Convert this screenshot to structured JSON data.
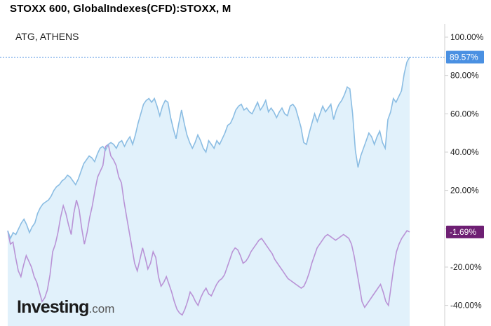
{
  "chart_title": "STOXX 600, GlobalIndexes(CFD):STOXX, M",
  "compare_label": "ATG, ATHENS",
  "logo": {
    "main": "Investing",
    "suffix": ".com"
  },
  "colors": {
    "stoxx_line": "#8bbde3",
    "stoxx_fill": "#e1f1fb",
    "stoxx_tag": "#4a90e2",
    "atg_line": "#b993d6",
    "atg_tag": "#6e1f73",
    "guide": "#4a90e2"
  },
  "chart_data": {
    "type": "line",
    "title": "STOXX 600, GlobalIndexes(CFD):STOXX, M",
    "ylabel": "",
    "xlabel": "",
    "ylim": [
      -45,
      105
    ],
    "y_ticks": [
      100,
      80,
      60,
      40,
      20,
      0,
      -20,
      -40
    ],
    "y_tick_labels": [
      "100.00%",
      "80.00%",
      "60.00%",
      "40.00%",
      "20.00%",
      "",
      "-20.00%",
      "-40.00%"
    ],
    "grid": false,
    "series": [
      {
        "name": "STOXX 600",
        "last_label": "89.57%",
        "last_value": 89.57,
        "values": [
          -1,
          -5,
          -2,
          -3,
          0,
          3,
          5,
          2,
          -2,
          1,
          3,
          8,
          11,
          13,
          14,
          15,
          17,
          20,
          22,
          23,
          25,
          26,
          28,
          27,
          25,
          23,
          26,
          30,
          34,
          36,
          38,
          37,
          35,
          39,
          42,
          43,
          41,
          44,
          45,
          44,
          42,
          45,
          46,
          43,
          46,
          48,
          44,
          49,
          55,
          60,
          65,
          67,
          68,
          66,
          68,
          64,
          59,
          64,
          67,
          66,
          58,
          52,
          47,
          55,
          62,
          55,
          49,
          45,
          42,
          45,
          49,
          46,
          42,
          40,
          46,
          44,
          42,
          46,
          44,
          47,
          50,
          54,
          55,
          58,
          62,
          64,
          65,
          62,
          63,
          61,
          60,
          63,
          66,
          62,
          64,
          67,
          61,
          63,
          61,
          58,
          61,
          63,
          60,
          59,
          64,
          65,
          63,
          58,
          53,
          45,
          44,
          50,
          55,
          60,
          56,
          60,
          64,
          61,
          63,
          65,
          57,
          62,
          65,
          67,
          70,
          74,
          73,
          60,
          41,
          32,
          38,
          42,
          46,
          50,
          48,
          44,
          48,
          51,
          45,
          42,
          57,
          61,
          68,
          66,
          69,
          72,
          81,
          87,
          89.57
        ],
        "color": "#8bbde3"
      },
      {
        "name": "ATG, ATHENS",
        "last_label": "-1.69%",
        "last_value": -1.69,
        "values": [
          -1,
          -8,
          -7,
          -15,
          -22,
          -25,
          -19,
          -14,
          -17,
          -20,
          -25,
          -28,
          -33,
          -38,
          -36,
          -32,
          -24,
          -12,
          -8,
          -2,
          6,
          12,
          8,
          2,
          -3,
          8,
          15,
          10,
          0,
          -8,
          -2,
          6,
          12,
          20,
          27,
          30,
          33,
          43,
          44,
          38,
          36,
          33,
          27,
          24,
          14,
          6,
          -2,
          -10,
          -18,
          -22,
          -16,
          -10,
          -15,
          -21,
          -18,
          -12,
          -15,
          -25,
          -30,
          -28,
          -25,
          -29,
          -33,
          -38,
          -42,
          -44,
          -45,
          -42,
          -38,
          -33,
          -35,
          -38,
          -40,
          -36,
          -33,
          -31,
          -34,
          -35,
          -32,
          -29,
          -27,
          -26,
          -24,
          -20,
          -16,
          -12,
          -10,
          -11,
          -14,
          -18,
          -17,
          -15,
          -12,
          -10,
          -8,
          -6,
          -5,
          -7,
          -9,
          -11,
          -13,
          -16,
          -18,
          -20,
          -22,
          -24,
          -26,
          -27,
          -28,
          -29,
          -30,
          -31,
          -30,
          -27,
          -23,
          -18,
          -14,
          -10,
          -8,
          -6,
          -4,
          -3,
          -4,
          -5,
          -6,
          -5,
          -4,
          -3,
          -4,
          -5,
          -8,
          -14,
          -22,
          -30,
          -38,
          -41,
          -39,
          -37,
          -35,
          -33,
          -31,
          -29,
          -33,
          -38,
          -40,
          -30,
          -20,
          -12,
          -8,
          -5,
          -3,
          -1,
          -1.69
        ],
        "color": "#b993d6"
      }
    ]
  }
}
